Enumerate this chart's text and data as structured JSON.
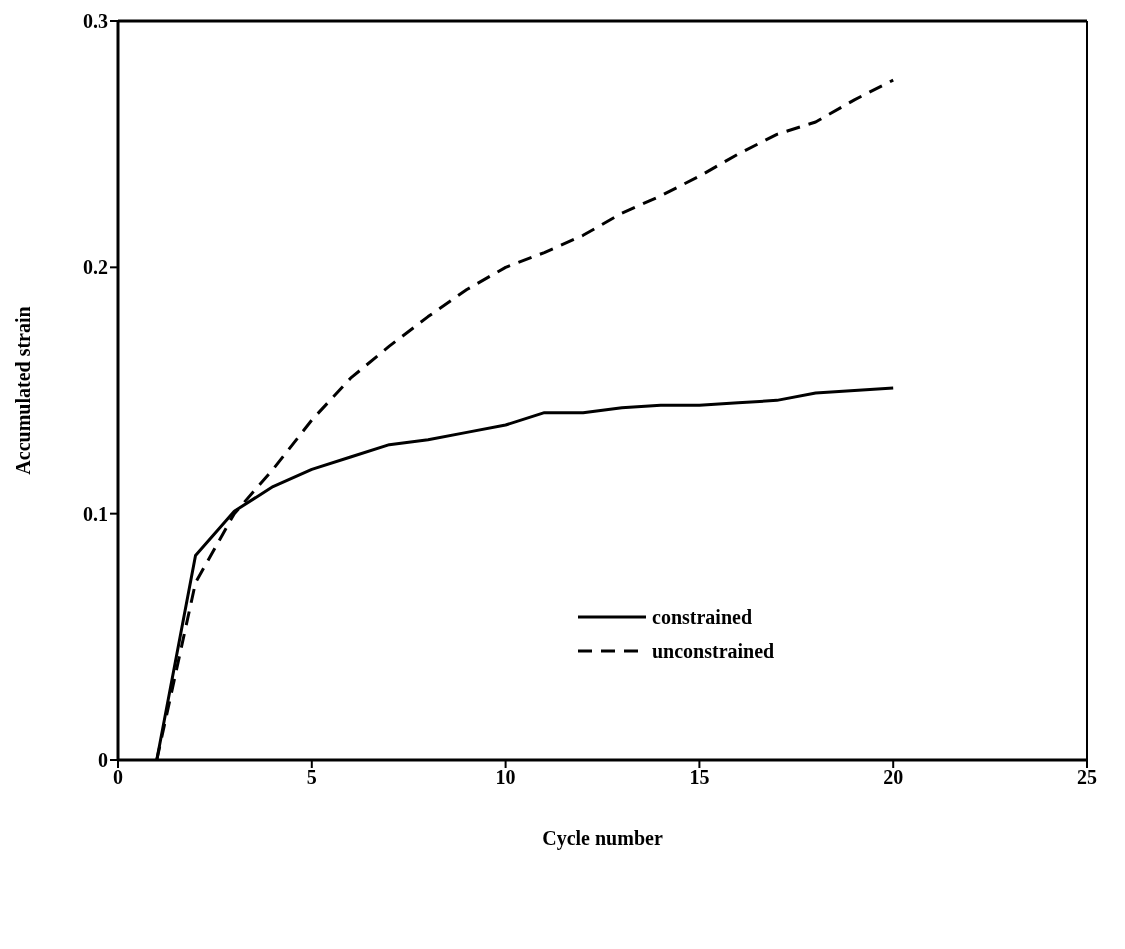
{
  "chart_data": {
    "type": "line",
    "xlabel": "Cycle number",
    "ylabel": "Accumulated strain",
    "x": [
      1,
      2,
      3,
      4,
      5,
      6,
      7,
      8,
      9,
      10,
      11,
      12,
      13,
      14,
      15,
      16,
      17,
      18,
      19,
      20
    ],
    "series": [
      {
        "name": "constrained",
        "color": "#000000",
        "line_style": "solid",
        "values": [
          0,
          0.083,
          0.101,
          0.111,
          0.118,
          0.123,
          0.128,
          0.13,
          0.133,
          0.136,
          0.141,
          0.141,
          0.143,
          0.144,
          0.144,
          0.145,
          0.146,
          0.149,
          0.15,
          0.151
        ]
      },
      {
        "name": "unconstrained",
        "color": "#000000",
        "line_style": "dashed",
        "values": [
          0,
          0.072,
          0.1,
          0.118,
          0.138,
          0.155,
          0.168,
          0.18,
          0.191,
          0.2,
          0.206,
          0.213,
          0.222,
          0.229,
          0.237,
          0.246,
          0.254,
          0.259,
          0.268,
          0.276
        ]
      }
    ],
    "xlim": [
      0,
      25
    ],
    "xticks": [
      0,
      5,
      10,
      15,
      20,
      25
    ],
    "ylim": [
      0,
      0.3
    ],
    "yticks": [
      0,
      0.1,
      0.2,
      0.3
    ],
    "grid": false,
    "legend": "bottom right",
    "marker": "none"
  }
}
